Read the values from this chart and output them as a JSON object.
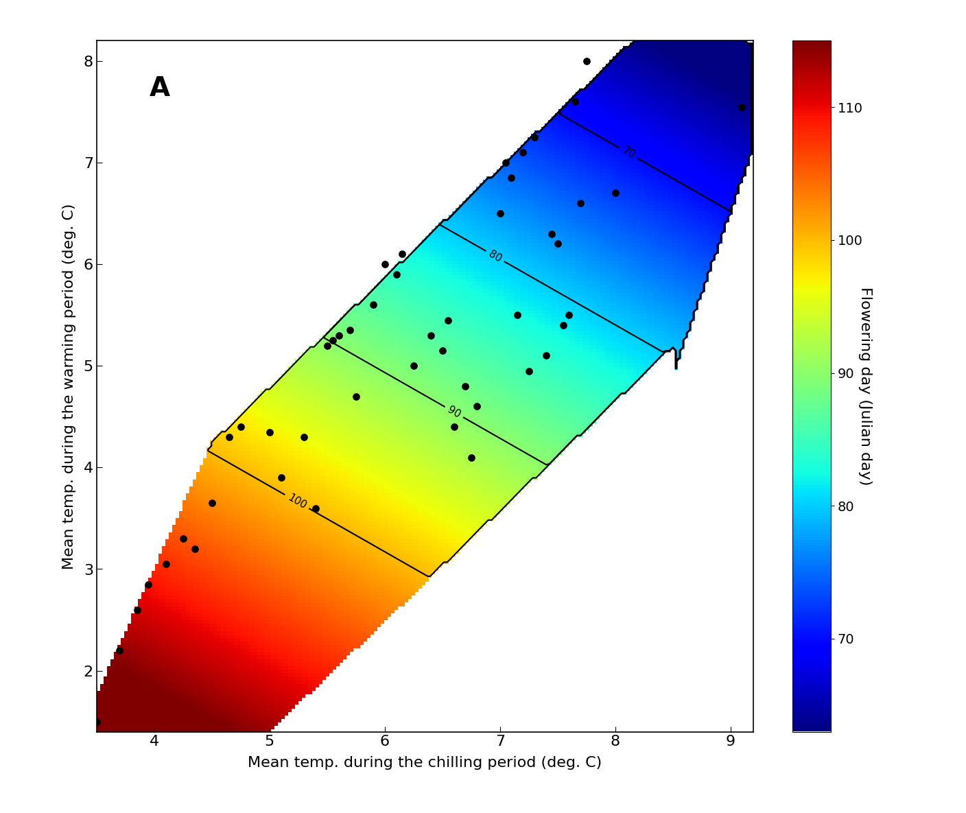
{
  "xlabel": "Mean temp. during the chilling period (deg. C)",
  "ylabel": "Mean temp. during the warming period (deg. C)",
  "panel_label": "A",
  "xlim": [
    3.5,
    9.2
  ],
  "ylim": [
    1.4,
    8.2
  ],
  "xticks": [
    4,
    5,
    6,
    7,
    8,
    9
  ],
  "yticks": [
    2,
    3,
    4,
    5,
    6,
    7,
    8
  ],
  "cbar_label": "Flowering day (Julian day)",
  "cbar_ticks": [
    70,
    80,
    90,
    100,
    110
  ],
  "vmin": 63,
  "vmax": 115,
  "colormap": "jet",
  "contour_levels": [
    70,
    80,
    90,
    100
  ],
  "scatter_points": [
    [
      3.5,
      1.5
    ],
    [
      3.7,
      2.2
    ],
    [
      3.85,
      2.6
    ],
    [
      3.95,
      2.85
    ],
    [
      4.1,
      3.05
    ],
    [
      4.25,
      3.3
    ],
    [
      4.35,
      3.2
    ],
    [
      4.5,
      3.65
    ],
    [
      4.65,
      4.3
    ],
    [
      4.75,
      4.4
    ],
    [
      5.0,
      4.35
    ],
    [
      5.1,
      3.9
    ],
    [
      5.3,
      4.3
    ],
    [
      5.4,
      3.6
    ],
    [
      5.5,
      5.2
    ],
    [
      5.55,
      5.25
    ],
    [
      5.6,
      5.3
    ],
    [
      5.7,
      5.35
    ],
    [
      5.75,
      4.7
    ],
    [
      5.9,
      5.6
    ],
    [
      6.0,
      6.0
    ],
    [
      6.1,
      5.9
    ],
    [
      6.15,
      6.1
    ],
    [
      6.25,
      5.0
    ],
    [
      6.4,
      5.3
    ],
    [
      6.5,
      5.15
    ],
    [
      6.55,
      5.45
    ],
    [
      6.6,
      4.4
    ],
    [
      6.7,
      4.8
    ],
    [
      6.75,
      4.1
    ],
    [
      6.8,
      4.6
    ],
    [
      7.0,
      6.5
    ],
    [
      7.05,
      7.0
    ],
    [
      7.1,
      6.85
    ],
    [
      7.15,
      5.5
    ],
    [
      7.2,
      7.1
    ],
    [
      7.25,
      4.95
    ],
    [
      7.3,
      7.25
    ],
    [
      7.4,
      5.1
    ],
    [
      7.45,
      6.3
    ],
    [
      7.5,
      6.2
    ],
    [
      7.55,
      5.4
    ],
    [
      7.6,
      5.5
    ],
    [
      7.65,
      7.6
    ],
    [
      7.7,
      6.6
    ],
    [
      7.75,
      8.0
    ],
    [
      8.0,
      6.7
    ],
    [
      9.1,
      7.55
    ]
  ],
  "background_color": "white",
  "figsize": [
    14.08,
    11.85
  ],
  "dpi": 100
}
